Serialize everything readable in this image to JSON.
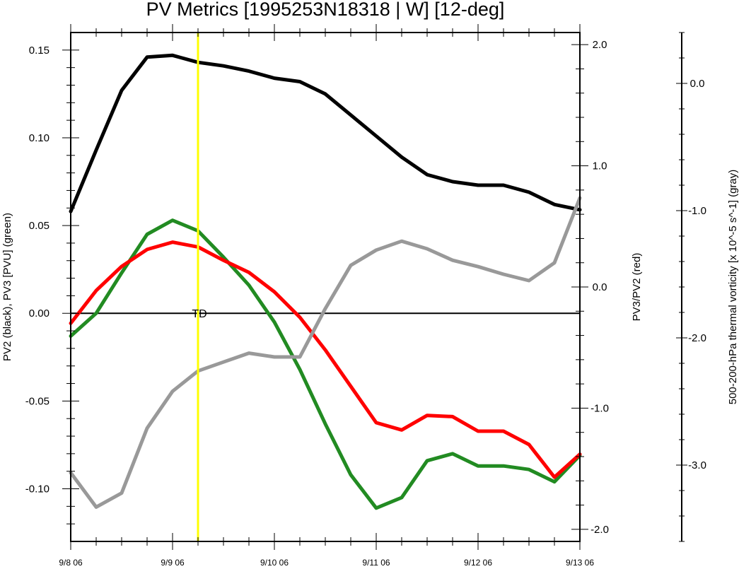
{
  "chart_data": {
    "type": "line",
    "title": "PV Metrics [1995253N18318 | W] [12-deg]",
    "x_axis": {
      "tick_labels": [
        "9/8 06",
        "9/9 06",
        "9/10 06",
        "9/11 06",
        "9/12 06",
        "9/13 06"
      ],
      "range_days": [
        0,
        5
      ],
      "tick_days": [
        0,
        1,
        2,
        3,
        4,
        5
      ]
    },
    "left_axis": {
      "label": "PV2 (black), PV3 [PVU] (green)",
      "range": [
        -0.13,
        0.16
      ],
      "ticks": [
        0.15,
        0.1,
        0.05,
        0.0,
        -0.05,
        -0.1
      ],
      "tick_labels": [
        "0.15",
        "0.10",
        "0.05",
        "0.00",
        "-0.05",
        "-0.10"
      ]
    },
    "right_axis": {
      "label": "PV3/PV2 (red)",
      "range": [
        -2.1,
        2.1
      ],
      "ticks": [
        2.0,
        1.0,
        0.0,
        -1.0,
        -2.0
      ],
      "tick_labels": [
        "2.0",
        "1.0",
        "0.0",
        "-1.0",
        "-2.0"
      ]
    },
    "far_right_axis": {
      "label": "500-200-hPa thermal vorticity [x 10^-5 s^-1] (gray)",
      "range": [
        -3.6,
        0.4
      ],
      "ticks": [
        0.0,
        -1.0,
        -2.0,
        -3.0
      ],
      "tick_labels": [
        "0.0",
        "-1.0",
        "-2.0",
        "-3.0"
      ]
    },
    "x_days": [
      0,
      0.25,
      0.5,
      0.75,
      1.0,
      1.25,
      1.5,
      1.75,
      2.0,
      2.25,
      2.5,
      2.75,
      3.0,
      3.25,
      3.5,
      3.75,
      4.0,
      4.25,
      4.5,
      4.75,
      5.0
    ],
    "series": [
      {
        "color": "#000000",
        "axis": "left",
        "values": [
          0.058,
          0.093,
          0.127,
          0.146,
          0.147,
          0.143,
          0.141,
          0.138,
          0.134,
          0.132,
          0.125,
          0.113,
          0.101,
          0.089,
          0.079,
          0.075,
          0.073,
          0.073,
          0.069,
          0.062,
          0.059
        ]
      },
      {
        "color": "#228B22",
        "axis": "left",
        "values": [
          -0.013,
          0.0,
          0.023,
          0.045,
          0.053,
          0.047,
          0.032,
          0.016,
          -0.005,
          -0.032,
          -0.063,
          -0.092,
          -0.111,
          -0.105,
          -0.084,
          -0.08,
          -0.087,
          -0.087,
          -0.089,
          -0.096,
          -0.081
        ]
      },
      {
        "color": "#FF0000",
        "axis": "right",
        "values": [
          -0.3,
          -0.03,
          0.17,
          0.31,
          0.37,
          0.33,
          0.22,
          0.12,
          -0.04,
          -0.25,
          -0.52,
          -0.82,
          -1.12,
          -1.18,
          -1.06,
          -1.07,
          -1.19,
          -1.19,
          -1.3,
          -1.57,
          -1.38
        ]
      },
      {
        "color": "#999999",
        "axis": "far_right",
        "values": [
          -3.06,
          -3.33,
          -3.22,
          -2.71,
          -2.42,
          -2.26,
          -2.19,
          -2.12,
          -2.15,
          -2.15,
          -1.77,
          -1.43,
          -1.31,
          -1.24,
          -1.3,
          -1.39,
          -1.44,
          -1.5,
          -1.55,
          -1.41,
          -0.9
        ]
      }
    ],
    "vertical_marker": {
      "x_days": 1.25,
      "color": "#FFFF00"
    },
    "zero_line": {
      "value": 0.0,
      "axis": "left"
    },
    "annotation": {
      "text": "TD",
      "x_days": 1.25,
      "y": 0.0
    }
  }
}
